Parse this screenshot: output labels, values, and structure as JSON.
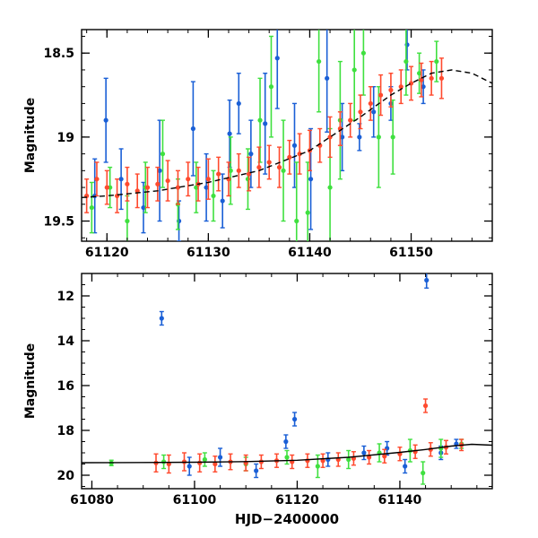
{
  "chart_data": [
    {
      "type": "scatter",
      "panel": "top",
      "title": "",
      "xlabel": "",
      "ylabel": "Magnitude",
      "xlim": [
        61117.5,
        61158.0
      ],
      "ylim": [
        19.62,
        18.36
      ],
      "y_inverted": true,
      "x_ticks": [
        61120,
        61130,
        61140,
        61150
      ],
      "y_ticks": [
        18.5,
        19,
        19.5
      ],
      "x_tick_labels": [
        "61120",
        "61130",
        "61140",
        "61150"
      ],
      "y_tick_labels": [
        "18.5",
        "19",
        "19.5"
      ],
      "grid": false,
      "series": [
        {
          "name": "blue band",
          "color": "#1a5fd6",
          "marker": "circle with error bar",
          "points": [
            [
              61118.8,
              19.35,
              0.22
            ],
            [
              61119.9,
              18.9,
              0.25
            ],
            [
              61121.4,
              19.25,
              0.18
            ],
            [
              61123.6,
              19.42,
              0.15
            ],
            [
              61125.2,
              19.2,
              0.3
            ],
            [
              61127.1,
              19.5,
              0.12
            ],
            [
              61128.5,
              18.95,
              0.28
            ],
            [
              61129.8,
              19.3,
              0.2
            ],
            [
              61131.4,
              19.38,
              0.16
            ],
            [
              61132.1,
              18.98,
              0.2
            ],
            [
              61133.0,
              18.8,
              0.18
            ],
            [
              61134.2,
              19.1,
              0.2
            ],
            [
              61135.6,
              18.92,
              0.3
            ],
            [
              61136.8,
              18.53,
              0.3
            ],
            [
              61138.5,
              19.05,
              0.25
            ],
            [
              61140.1,
              19.25,
              0.3
            ],
            [
              61141.7,
              18.65,
              0.32
            ],
            [
              61143.2,
              19.0,
              0.2
            ],
            [
              61144.9,
              19.0,
              0.08
            ],
            [
              61146.3,
              18.85,
              0.15
            ],
            [
              61148.0,
              18.8,
              0.1
            ],
            [
              61149.6,
              18.45,
              0.15
            ],
            [
              61151.2,
              18.7,
              0.1
            ]
          ]
        },
        {
          "name": "green band",
          "color": "#3fe03f",
          "marker": "circle with error bar",
          "points": [
            [
              61118.5,
              19.42,
              0.15
            ],
            [
              61120.3,
              19.3,
              0.12
            ],
            [
              61122.0,
              19.5,
              0.15
            ],
            [
              61123.8,
              19.3,
              0.15
            ],
            [
              61125.5,
              19.1,
              0.2
            ],
            [
              61127.0,
              19.4,
              0.15
            ],
            [
              61128.8,
              19.3,
              0.15
            ],
            [
              61130.5,
              19.35,
              0.15
            ],
            [
              61132.2,
              19.2,
              0.2
            ],
            [
              61133.9,
              19.25,
              0.18
            ],
            [
              61135.1,
              18.9,
              0.25
            ],
            [
              61136.2,
              18.7,
              0.3
            ],
            [
              61137.4,
              19.2,
              0.3
            ],
            [
              61138.7,
              19.5,
              0.35
            ],
            [
              61139.8,
              19.45,
              0.3
            ],
            [
              61140.9,
              18.55,
              0.3
            ],
            [
              61142.0,
              19.3,
              0.35
            ],
            [
              61143.0,
              18.9,
              0.35
            ],
            [
              61144.4,
              18.6,
              0.3
            ],
            [
              61145.3,
              18.5,
              0.25
            ],
            [
              61146.8,
              19.0,
              0.3
            ],
            [
              61148.2,
              19.0,
              0.22
            ],
            [
              61149.5,
              18.55,
              0.2
            ],
            [
              61150.8,
              18.62,
              0.12
            ],
            [
              61152.5,
              18.55,
              0.12
            ]
          ]
        },
        {
          "name": "red band",
          "color": "#ff4a2e",
          "marker": "circle with error bar",
          "points": [
            [
              61118.0,
              19.35,
              0.1
            ],
            [
              61119.0,
              19.25,
              0.1
            ],
            [
              61120.0,
              19.3,
              0.1
            ],
            [
              61121.0,
              19.35,
              0.1
            ],
            [
              61122.0,
              19.28,
              0.1
            ],
            [
              61123.0,
              19.32,
              0.1
            ],
            [
              61124.0,
              19.3,
              0.12
            ],
            [
              61125.0,
              19.28,
              0.1
            ],
            [
              61126.0,
              19.26,
              0.12
            ],
            [
              61127.0,
              19.3,
              0.1
            ],
            [
              61128.0,
              19.25,
              0.1
            ],
            [
              61129.0,
              19.28,
              0.1
            ],
            [
              61130.0,
              19.25,
              0.12
            ],
            [
              61131.0,
              19.22,
              0.1
            ],
            [
              61132.0,
              19.25,
              0.1
            ],
            [
              61133.0,
              19.2,
              0.1
            ],
            [
              61134.0,
              19.22,
              0.1
            ],
            [
              61135.0,
              19.18,
              0.12
            ],
            [
              61136.0,
              19.15,
              0.1
            ],
            [
              61137.0,
              19.18,
              0.12
            ],
            [
              61138.0,
              19.12,
              0.1
            ],
            [
              61139.0,
              19.1,
              0.12
            ],
            [
              61140.0,
              19.08,
              0.12
            ],
            [
              61141.0,
              19.05,
              0.1
            ],
            [
              61142.0,
              19.0,
              0.12
            ],
            [
              61143.0,
              18.95,
              0.1
            ],
            [
              61144.0,
              18.9,
              0.1
            ],
            [
              61145.0,
              18.85,
              0.1
            ],
            [
              61146.0,
              18.8,
              0.1
            ],
            [
              61147.0,
              18.75,
              0.12
            ],
            [
              61148.0,
              18.72,
              0.1
            ],
            [
              61149.0,
              18.7,
              0.1
            ],
            [
              61150.0,
              18.68,
              0.1
            ],
            [
              61151.0,
              18.66,
              0.1
            ],
            [
              61152.0,
              18.65,
              0.1
            ],
            [
              61153.0,
              18.65,
              0.12
            ]
          ]
        }
      ],
      "model_curve": {
        "name": "model",
        "color": "#000000",
        "style": "dashed, solid beyond data",
        "x": [
          61117.5,
          61120,
          61125,
          61130,
          61135,
          61140,
          61145,
          61148,
          61150,
          61152,
          61154,
          61156,
          61158
        ],
        "y": [
          19.36,
          19.35,
          19.32,
          19.27,
          19.2,
          19.08,
          18.88,
          18.75,
          18.68,
          18.62,
          18.6,
          18.62,
          18.68
        ]
      }
    },
    {
      "type": "scatter",
      "panel": "bottom",
      "title": "",
      "xlabel": "HJD−2400000",
      "ylabel": "Magnitude",
      "xlim": [
        61078.0,
        61158.0
      ],
      "ylim": [
        20.6,
        11.0
      ],
      "y_inverted": true,
      "x_ticks": [
        61080,
        61100,
        61120,
        61140
      ],
      "y_ticks": [
        12,
        14,
        16,
        18,
        20
      ],
      "x_tick_labels": [
        "61080",
        "61100",
        "61120",
        "61140"
      ],
      "y_tick_labels": [
        "12",
        "14",
        "16",
        "18",
        "20"
      ],
      "grid": false,
      "series": [
        {
          "name": "blue band",
          "color": "#1a5fd6",
          "marker": "circle with error bar",
          "points": [
            [
              61093.6,
              13.0,
              0.3
            ],
            [
              61145.2,
              11.3,
              0.35
            ],
            [
              61119.5,
              17.5,
              0.3
            ],
            [
              61117.8,
              18.5,
              0.3
            ],
            [
              61099.0,
              19.6,
              0.4
            ],
            [
              61105.0,
              19.2,
              0.4
            ],
            [
              61112.0,
              19.8,
              0.3
            ],
            [
              61126.0,
              19.3,
              0.3
            ],
            [
              61133.0,
              19.0,
              0.3
            ],
            [
              61137.5,
              18.8,
              0.3
            ],
            [
              61141.0,
              19.6,
              0.3
            ],
            [
              61148.0,
              19.0,
              0.3
            ],
            [
              61151.0,
              18.6,
              0.2
            ]
          ]
        },
        {
          "name": "green band",
          "color": "#3fe03f",
          "marker": "circle with error bar",
          "points": [
            [
              61083.8,
              19.45,
              0.12
            ],
            [
              61094.0,
              19.4,
              0.3
            ],
            [
              61102.0,
              19.3,
              0.3
            ],
            [
              61110.0,
              19.5,
              0.3
            ],
            [
              61118.0,
              19.2,
              0.3
            ],
            [
              61124.0,
              19.6,
              0.5
            ],
            [
              61130.0,
              19.3,
              0.4
            ],
            [
              61136.0,
              19.0,
              0.4
            ],
            [
              61142.0,
              18.9,
              0.5
            ],
            [
              61144.5,
              19.9,
              0.5
            ],
            [
              61148.0,
              18.8,
              0.4
            ],
            [
              61152.0,
              18.6,
              0.2
            ]
          ]
        },
        {
          "name": "red band",
          "color": "#ff4a2e",
          "marker": "circle with error bar",
          "points": [
            [
              61145.0,
              16.9,
              0.3
            ],
            [
              61092.5,
              19.45,
              0.4
            ],
            [
              61095.0,
              19.5,
              0.4
            ],
            [
              61098.0,
              19.4,
              0.4
            ],
            [
              61101.0,
              19.45,
              0.4
            ],
            [
              61104.0,
              19.5,
              0.35
            ],
            [
              61107.0,
              19.4,
              0.35
            ],
            [
              61110.0,
              19.45,
              0.35
            ],
            [
              61113.0,
              19.4,
              0.3
            ],
            [
              61116.0,
              19.35,
              0.3
            ],
            [
              61119.0,
              19.4,
              0.3
            ],
            [
              61122.0,
              19.35,
              0.3
            ],
            [
              61125.0,
              19.35,
              0.3
            ],
            [
              61128.0,
              19.3,
              0.3
            ],
            [
              61131.0,
              19.25,
              0.3
            ],
            [
              61134.0,
              19.2,
              0.3
            ],
            [
              61137.0,
              19.15,
              0.3
            ],
            [
              61140.0,
              19.05,
              0.3
            ],
            [
              61143.0,
              18.95,
              0.3
            ],
            [
              61146.0,
              18.85,
              0.3
            ],
            [
              61149.0,
              18.75,
              0.3
            ],
            [
              61152.0,
              18.65,
              0.25
            ]
          ]
        }
      ],
      "model_curve": {
        "name": "model",
        "color": "#000000",
        "style": "solid",
        "x": [
          61078.0,
          61090,
          61100,
          61110,
          61120,
          61130,
          61140,
          61145,
          61150,
          61154,
          61158
        ],
        "y": [
          19.44,
          19.43,
          19.42,
          19.39,
          19.33,
          19.2,
          18.98,
          18.85,
          18.7,
          18.62,
          18.66
        ]
      }
    }
  ]
}
